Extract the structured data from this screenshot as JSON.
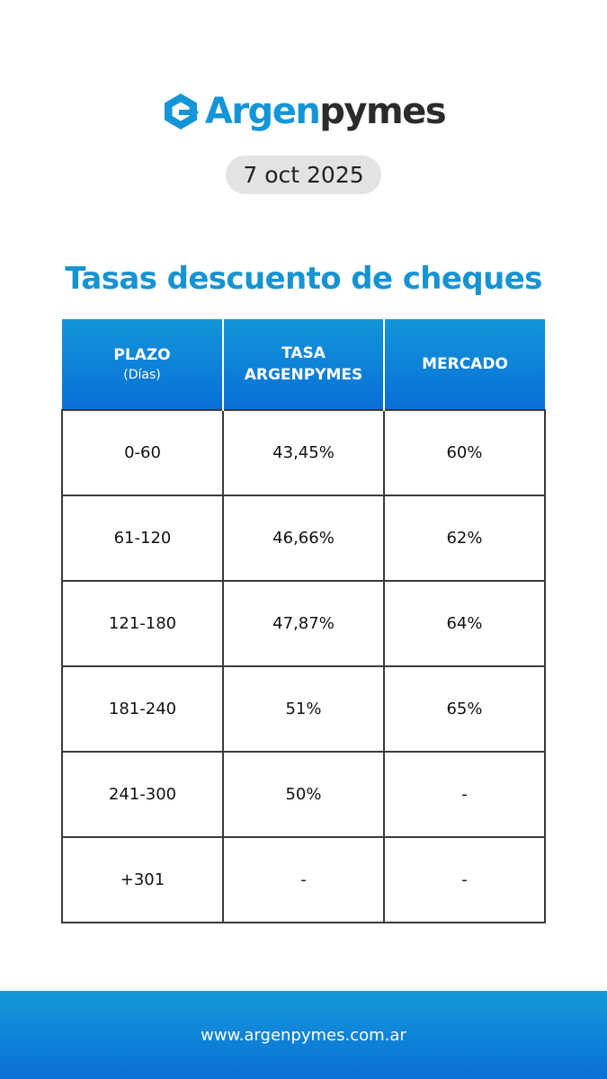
{
  "brand": {
    "name_part1": "Argen",
    "name_part2": "pymes",
    "logo_icon": "hexagon-arrow-icon",
    "colors": {
      "primary_blue": "#1395d8",
      "dark_text": "#2b2b2b",
      "header_blue": "#0a6fd8"
    }
  },
  "date": "7 oct 2025",
  "title": "Tasas descuento de cheques",
  "table": {
    "headers": [
      {
        "line1": "PLAZO",
        "line2": "(Días)"
      },
      {
        "line1": "TASA",
        "line2": "ARGENPYMES"
      },
      {
        "line1": "MERCADO",
        "line2": ""
      }
    ],
    "rows": [
      {
        "plazo": "0-60",
        "tasa": "43,45%",
        "mercado": "60%"
      },
      {
        "plazo": "61-120",
        "tasa": "46,66%",
        "mercado": "62%"
      },
      {
        "plazo": "121-180",
        "tasa": "47,87%",
        "mercado": "64%"
      },
      {
        "plazo": "181-240",
        "tasa": "51%",
        "mercado": "65%"
      },
      {
        "plazo": "241-300",
        "tasa": "50%",
        "mercado": "-"
      },
      {
        "plazo": "+301",
        "tasa": "-",
        "mercado": "-"
      }
    ]
  },
  "footer": {
    "url": "www.argenpymes.com.ar"
  }
}
